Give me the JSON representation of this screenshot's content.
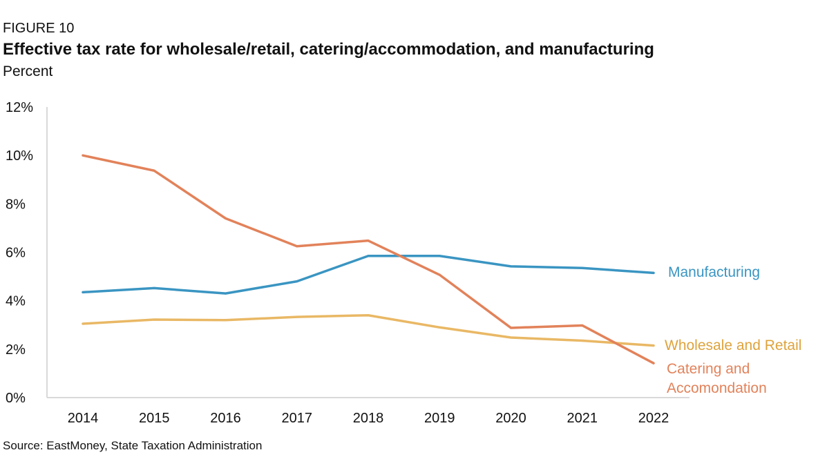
{
  "figure": {
    "label": "FIGURE 10",
    "title": "Effective tax rate for wholesale/retail, catering/accommodation, and manufacturing",
    "subtitle": "Percent",
    "source": "Source: EastMoney, State Taxation Administration"
  },
  "chart_data": {
    "type": "line",
    "title": "Effective tax rate for wholesale/retail, catering/accommodation, and manufacturing",
    "ylabel": "Percent",
    "xlabel": "",
    "categories": [
      "2014",
      "2015",
      "2016",
      "2017",
      "2018",
      "2019",
      "2020",
      "2021",
      "2022"
    ],
    "ylim": [
      0,
      12
    ],
    "yticks": [
      0,
      2,
      4,
      6,
      8,
      10,
      12
    ],
    "ytick_labels": [
      "0%",
      "2%",
      "4%",
      "6%",
      "8%",
      "10%",
      "12%"
    ],
    "grid": false,
    "legend": "inline labels at right end of each line",
    "series": [
      {
        "name": "Manufacturing",
        "label_lines": [
          "Manufacturing"
        ],
        "color": "#3a95c2",
        "values": [
          4.35,
          4.52,
          4.3,
          4.8,
          5.85,
          5.85,
          5.42,
          5.35,
          5.15
        ]
      },
      {
        "name": "Wholesale and Retail",
        "label_lines": [
          "Wholesale and Retail"
        ],
        "color": "#e9b865",
        "label_color": "#dea33c",
        "values": [
          3.05,
          3.22,
          3.2,
          3.33,
          3.4,
          2.9,
          2.48,
          2.35,
          2.15
        ]
      },
      {
        "name": "Catering and Accomondation",
        "label_lines": [
          "Catering and",
          "Accomondation"
        ],
        "color": "#e2825a",
        "values": [
          10.0,
          9.37,
          7.4,
          6.25,
          6.48,
          5.07,
          2.88,
          2.98,
          1.42
        ]
      }
    ]
  }
}
